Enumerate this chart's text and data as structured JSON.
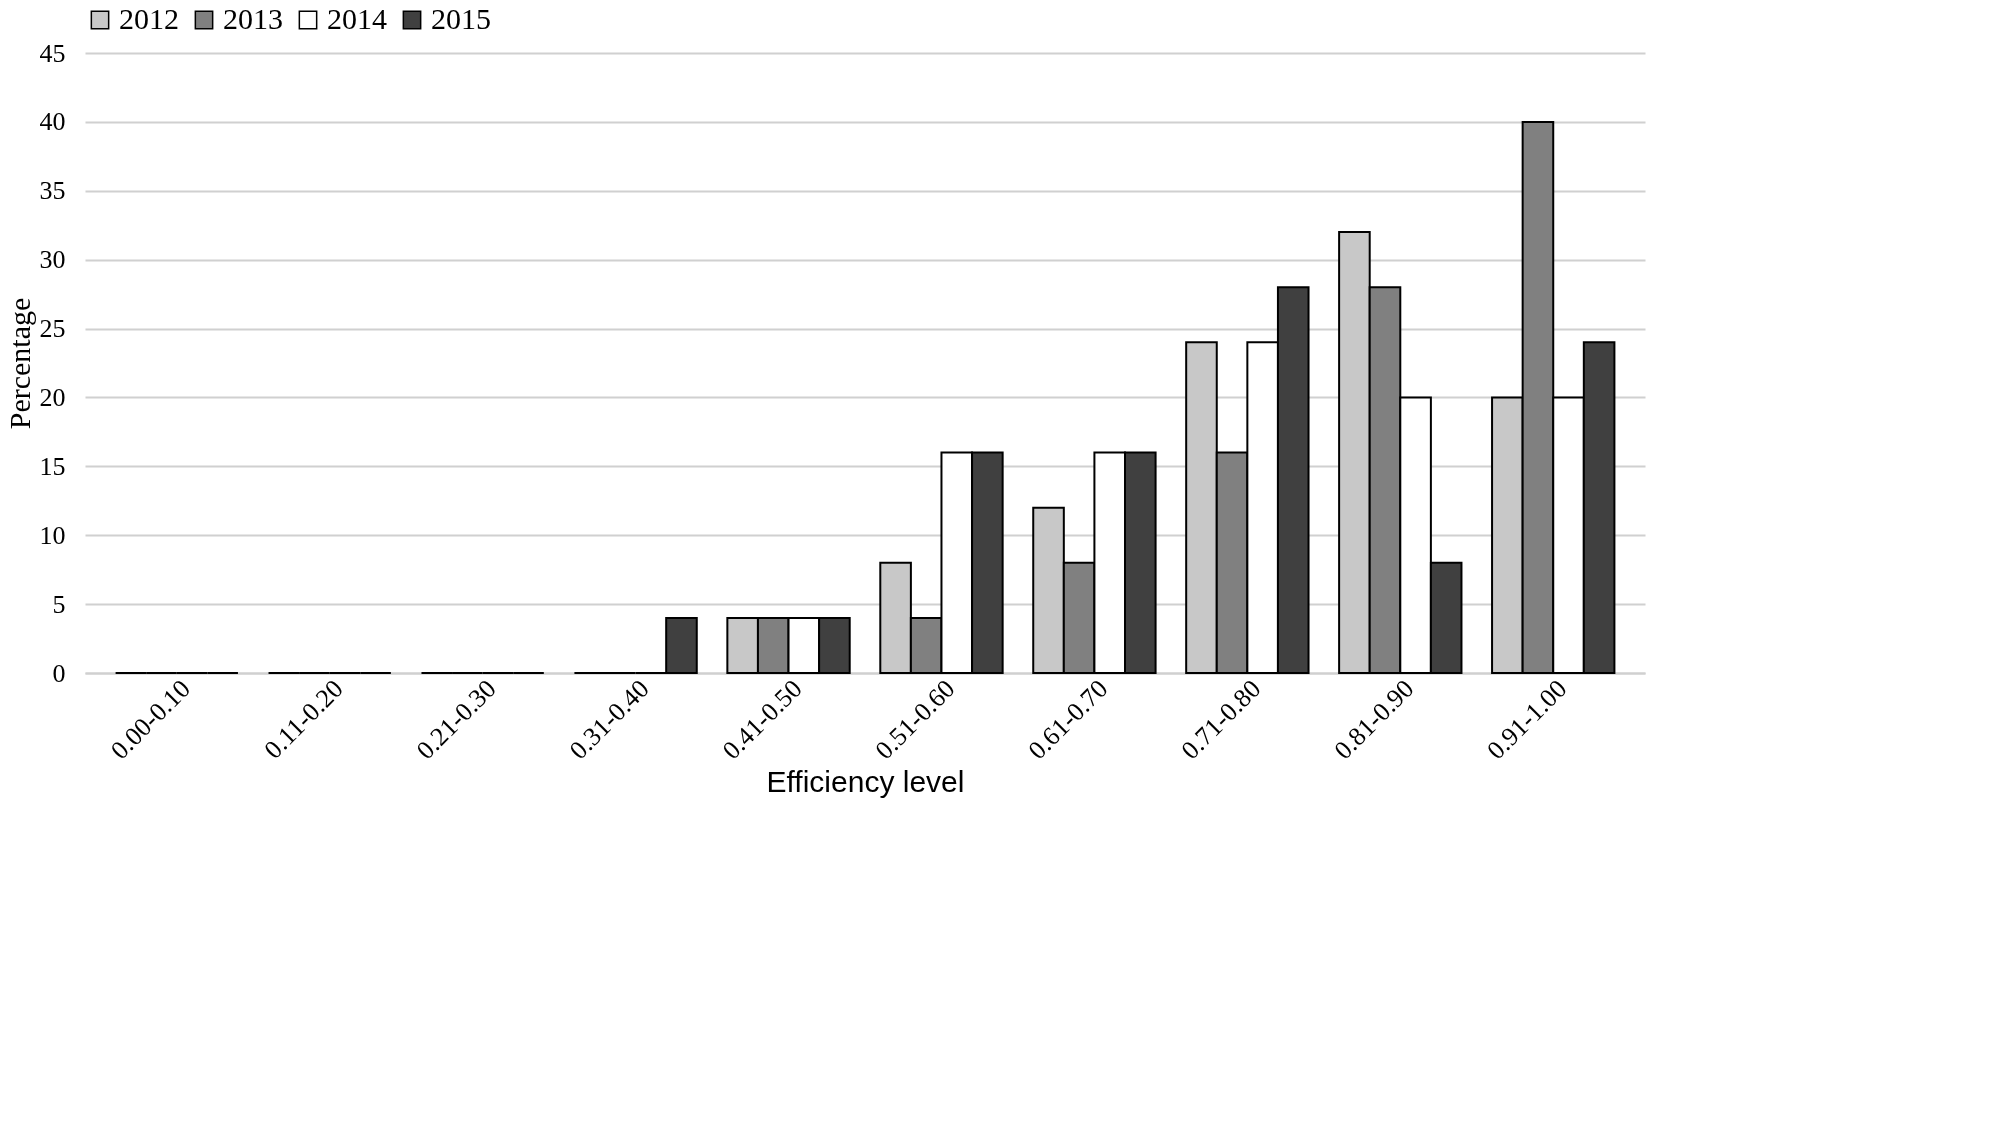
{
  "chart_data": {
    "type": "bar",
    "xlabel": "Efficiency level",
    "ylabel": "Percentage",
    "categories": [
      "0.00-0.10",
      "0.11-0.20",
      "0.21-0.30",
      "0.31-0.40",
      "0.41-0.50",
      "0.51-0.60",
      "0.61-0.70",
      "0.71-0.80",
      "0.81-0.90",
      "0.91-1.00"
    ],
    "series": [
      {
        "name": "2012",
        "color": "#c8c8c8",
        "values": [
          0,
          0,
          0,
          0,
          4,
          8,
          12,
          24,
          32,
          20
        ]
      },
      {
        "name": "2013",
        "color": "#808080",
        "values": [
          0,
          0,
          0,
          0,
          4,
          4,
          8,
          16,
          28,
          40
        ]
      },
      {
        "name": "2014",
        "color": "#ffffff",
        "values": [
          0,
          0,
          0,
          0,
          4,
          16,
          16,
          24,
          20,
          20
        ]
      },
      {
        "name": "2015",
        "color": "#404040",
        "values": [
          0,
          0,
          0,
          4,
          4,
          16,
          16,
          28,
          8,
          24
        ]
      }
    ],
    "ylim": [
      0,
      45
    ],
    "yticks": [
      0,
      5,
      10,
      15,
      20,
      25,
      30,
      35,
      40,
      45
    ],
    "grid": "y",
    "legend": "top"
  }
}
